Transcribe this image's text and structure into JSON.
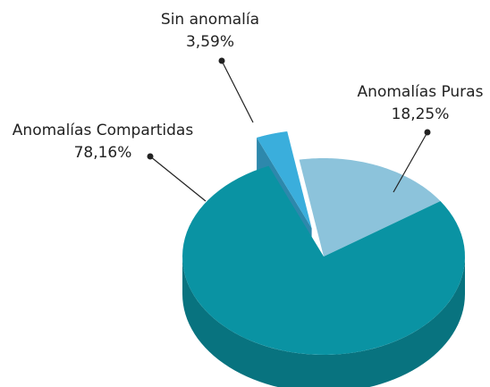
{
  "chart_data": {
    "type": "pie",
    "categories": [
      "Sin anomalía",
      "Anomalías Puras",
      "Anomalías Compartidas"
    ],
    "values": [
      3.59,
      18.25,
      78.16
    ],
    "value_labels": [
      "3,59%",
      "18,25%",
      "78,16%"
    ],
    "colors": [
      "#3aaedc",
      "#8cc3db",
      "#0a93a3"
    ]
  }
}
